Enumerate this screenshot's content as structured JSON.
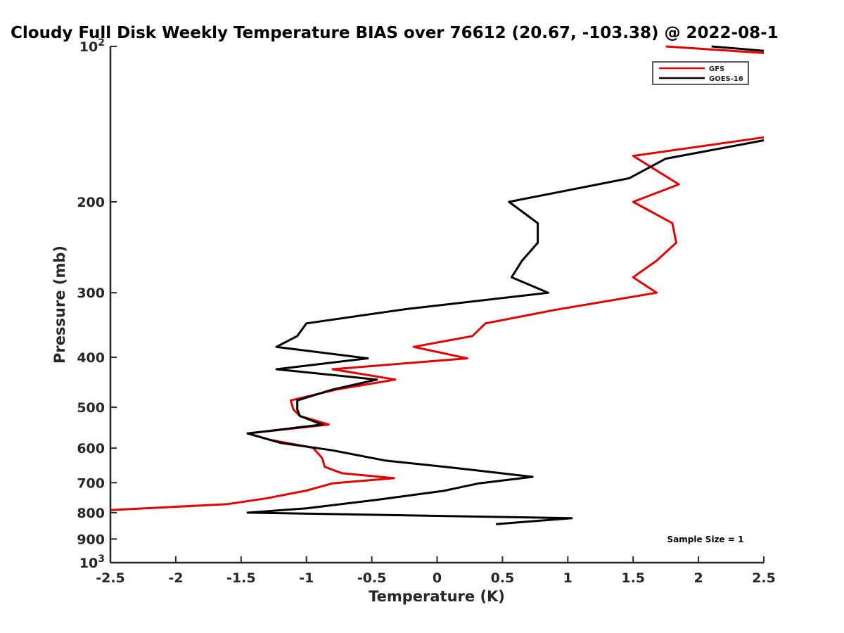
{
  "chart_data": {
    "type": "line",
    "title": "Cloudy Full Disk Weekly Temperature BIAS over 76612 (20.67, -103.38) @ 2022-08-1",
    "xlabel": "Temperature (K)",
    "ylabel": "Pressure (mb)",
    "xlim": [
      -2.5,
      2.5
    ],
    "ylim": [
      100,
      1000
    ],
    "y_scale": "log",
    "y_reversed": true,
    "x_ticks": [
      "-2.5",
      "-2",
      "-1.5",
      "-1",
      "-0.5",
      "0",
      "0.5",
      "1",
      "1.5",
      "2",
      "2.5"
    ],
    "y_ticks": [
      {
        "value": 100,
        "base": "10",
        "exp": "2"
      },
      {
        "value": 200,
        "label": "200"
      },
      {
        "value": 300,
        "label": "300"
      },
      {
        "value": 400,
        "label": "400"
      },
      {
        "value": 500,
        "label": "500"
      },
      {
        "value": 600,
        "label": "600"
      },
      {
        "value": 700,
        "label": "700"
      },
      {
        "value": 800,
        "label": "800"
      },
      {
        "value": 900,
        "label": "900"
      },
      {
        "value": 1000,
        "base": "10",
        "exp": "3"
      }
    ],
    "legend_position": "top-right",
    "annotation": "Sample Size = 1",
    "series": [
      {
        "name": "GFS",
        "color": "#e00000",
        "segments": [
          [
            [
              1.75,
              100
            ],
            [
              2.5,
              103
            ]
          ],
          [
            [
              2.5,
              150
            ],
            [
              1.5,
              163
            ],
            [
              1.85,
              185
            ],
            [
              1.5,
              200
            ],
            [
              1.8,
              220
            ],
            [
              1.83,
              240
            ],
            [
              1.68,
              260
            ],
            [
              1.5,
              280
            ],
            [
              1.68,
              300
            ],
            [
              0.9,
              324
            ],
            [
              0.37,
              344
            ],
            [
              0.27,
              364
            ],
            [
              -0.18,
              382
            ],
            [
              0.23,
              402
            ],
            [
              -0.8,
              422
            ],
            [
              -0.32,
              442
            ],
            [
              -0.77,
              462
            ],
            [
              -1.12,
              485
            ],
            [
              -1.1,
              505
            ],
            [
              -1.05,
              520
            ],
            [
              -0.83,
              540
            ],
            [
              -1.45,
              562
            ],
            [
              -1.28,
              578
            ],
            [
              -0.95,
              599
            ],
            [
              -0.88,
              627
            ],
            [
              -0.86,
              652
            ],
            [
              -0.73,
              671
            ],
            [
              -0.33,
              686
            ],
            [
              -0.8,
              702
            ],
            [
              -1.0,
              725
            ],
            [
              -1.3,
              750
            ],
            [
              -1.6,
              770
            ],
            [
              -2.5,
              791
            ]
          ]
        ]
      },
      {
        "name": "GOES-16",
        "color": "#000000",
        "segments": [
          [
            [
              2.1,
              100
            ],
            [
              2.5,
              102
            ]
          ],
          [
            [
              2.5,
              152
            ],
            [
              1.75,
              165
            ],
            [
              1.47,
              180
            ],
            [
              0.55,
              200
            ],
            [
              0.77,
              220
            ],
            [
              0.77,
              240
            ],
            [
              0.65,
              260
            ],
            [
              0.57,
              280
            ],
            [
              0.85,
              300
            ],
            [
              -0.25,
              323
            ],
            [
              -1.0,
              344
            ],
            [
              -1.07,
              364
            ],
            [
              -1.23,
              382
            ],
            [
              -0.53,
              402
            ],
            [
              -1.23,
              422
            ],
            [
              -0.46,
              442
            ],
            [
              -0.8,
              462
            ],
            [
              -1.07,
              485
            ],
            [
              -1.07,
              505
            ],
            [
              -1.05,
              520
            ],
            [
              -0.88,
              540
            ],
            [
              -1.45,
              562
            ],
            [
              -1.2,
              586
            ],
            [
              -0.8,
              606
            ],
            [
              -0.4,
              634
            ],
            [
              0.2,
              658
            ],
            [
              0.73,
              682
            ],
            [
              0.32,
              702
            ],
            [
              0.05,
              726
            ],
            [
              -0.45,
              755
            ],
            [
              -1.0,
              785
            ],
            [
              -1.45,
              800
            ],
            [
              1.03,
              820
            ],
            [
              0.45,
              842
            ]
          ]
        ]
      }
    ]
  }
}
